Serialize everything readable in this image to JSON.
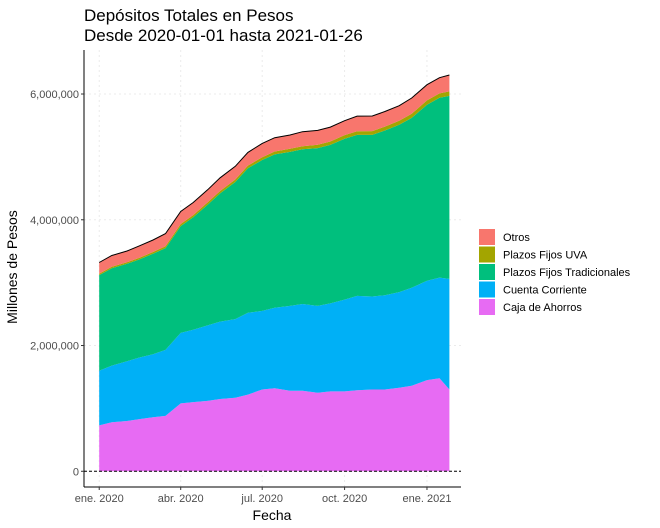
{
  "chart_data": {
    "type": "area",
    "stacked": true,
    "title": "Depósitos Totales en Pesos",
    "subtitle": "Desde 2020-01-01 hasta 2021-01-26",
    "xlabel": "Fecha",
    "ylabel": "Millones de Pesos",
    "x_ticks": [
      {
        "date": "2020-01-01",
        "label": "ene. 2020"
      },
      {
        "date": "2020-04-01",
        "label": "abr. 2020"
      },
      {
        "date": "2020-07-01",
        "label": "jul. 2020"
      },
      {
        "date": "2020-10-01",
        "label": "oct. 2020"
      },
      {
        "date": "2021-01-01",
        "label": "ene. 2021"
      }
    ],
    "xlim": [
      "2019-12-15",
      "2021-02-08"
    ],
    "y_ticks": [
      {
        "value": 0,
        "label": "0"
      },
      {
        "value": 2000000,
        "label": "2,000,000"
      },
      {
        "value": 4000000,
        "label": "4,000,000"
      },
      {
        "value": 6000000,
        "label": "6,000,000"
      }
    ],
    "ylim": [
      -250000,
      6700000
    ],
    "grid": true,
    "legend_position": "right",
    "x": [
      "2020-01-01",
      "2020-01-15",
      "2020-02-01",
      "2020-02-15",
      "2020-03-01",
      "2020-03-15",
      "2020-04-01",
      "2020-04-15",
      "2020-05-01",
      "2020-05-15",
      "2020-06-01",
      "2020-06-15",
      "2020-07-01",
      "2020-07-15",
      "2020-08-01",
      "2020-08-15",
      "2020-09-01",
      "2020-09-15",
      "2020-10-01",
      "2020-10-15",
      "2020-11-01",
      "2020-11-15",
      "2020-12-01",
      "2020-12-15",
      "2021-01-01",
      "2021-01-15",
      "2021-01-26"
    ],
    "series": [
      {
        "name": "Caja de Ahorros",
        "color": "#E76BF3",
        "values": [
          730000,
          780000,
          800000,
          830000,
          860000,
          880000,
          1080000,
          1100000,
          1120000,
          1150000,
          1170000,
          1220000,
          1300000,
          1320000,
          1280000,
          1280000,
          1250000,
          1270000,
          1270000,
          1290000,
          1300000,
          1300000,
          1330000,
          1360000,
          1450000,
          1480000,
          1300000
        ]
      },
      {
        "name": "Cuenta Corriente",
        "color": "#00B0F6",
        "values": [
          870000,
          900000,
          950000,
          980000,
          1000000,
          1050000,
          1120000,
          1150000,
          1200000,
          1230000,
          1250000,
          1300000,
          1250000,
          1280000,
          1350000,
          1380000,
          1380000,
          1400000,
          1460000,
          1500000,
          1480000,
          1500000,
          1520000,
          1560000,
          1580000,
          1600000,
          1760000
        ]
      },
      {
        "name": "Plazos Fijos Tradicionales",
        "color": "#00BF7D",
        "values": [
          1520000,
          1550000,
          1550000,
          1560000,
          1600000,
          1620000,
          1700000,
          1790000,
          1920000,
          2040000,
          2180000,
          2300000,
          2400000,
          2440000,
          2450000,
          2460000,
          2510000,
          2520000,
          2560000,
          2560000,
          2570000,
          2620000,
          2660000,
          2700000,
          2800000,
          2860000,
          2910000
        ]
      },
      {
        "name": "Plazos Fijos UVA",
        "color": "#A3A500",
        "values": [
          20000,
          22000,
          24000,
          26000,
          28000,
          30000,
          32000,
          34000,
          36000,
          38000,
          40000,
          42000,
          44000,
          46000,
          48000,
          50000,
          52000,
          54000,
          56000,
          58000,
          60000,
          62000,
          64000,
          66000,
          68000,
          70000,
          72000
        ]
      },
      {
        "name": "Otros",
        "color": "#F8766D",
        "values": [
          180000,
          180000,
          180000,
          190000,
          190000,
          200000,
          200000,
          200000,
          200000,
          210000,
          210000,
          210000,
          220000,
          220000,
          220000,
          230000,
          230000,
          230000,
          230000,
          240000,
          240000,
          240000,
          240000,
          250000,
          250000,
          250000,
          260000
        ]
      }
    ],
    "legend_order": [
      "Otros",
      "Plazos Fijos UVA",
      "Plazos Fijos Tradicionales",
      "Cuenta Corriente",
      "Caja de Ahorros"
    ]
  }
}
